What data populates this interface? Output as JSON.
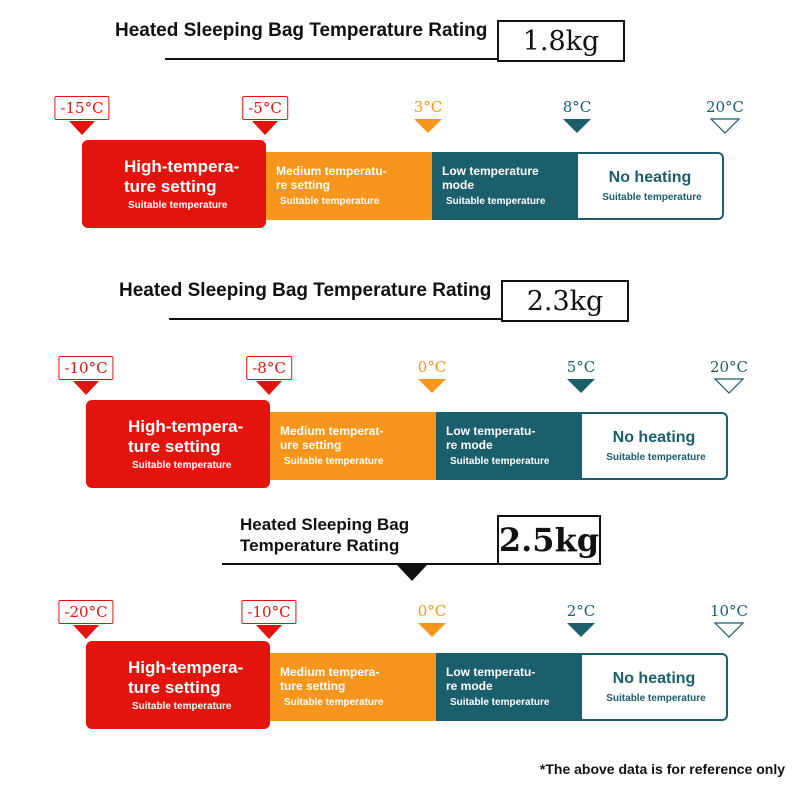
{
  "sections": [
    {
      "title": [
        "Heated Sleeping Bag Temperature Rating"
      ],
      "weight": "1.8kg",
      "markers": [
        "-15°C",
        "-5°C",
        "3°C",
        "8°C",
        "20°C"
      ],
      "segments": [
        {
          "title": [
            "High-tempera-",
            "ture setting"
          ],
          "subtitle": "Suitable temperature"
        },
        {
          "title": [
            "Medium temperatu-",
            "re setting"
          ],
          "subtitle": "Suitable temperature"
        },
        {
          "title": [
            "Low temperature",
            "mode"
          ],
          "subtitle": "Suitable temperature"
        },
        {
          "title": [
            "No heating"
          ],
          "subtitle": "Suitable temperature"
        }
      ]
    },
    {
      "title": [
        "Heated Sleeping Bag Temperature Rating"
      ],
      "weight": "2.3kg",
      "markers": [
        "-10°C",
        "-8°C",
        "0°C",
        "5°C",
        "20°C"
      ],
      "segments": [
        {
          "title": [
            "High-tempera-",
            "ture setting"
          ],
          "subtitle": "Suitable temperature"
        },
        {
          "title": [
            "Medium temperat-",
            "ure setting"
          ],
          "subtitle": "Suitable temperature"
        },
        {
          "title": [
            "Low temperatu-",
            "re mode"
          ],
          "subtitle": "Suitable temperature"
        },
        {
          "title": [
            "No heating"
          ],
          "subtitle": "Suitable temperature"
        }
      ]
    },
    {
      "title": [
        "Heated Sleeping Bag",
        "Temperature Rating"
      ],
      "weight": "2.5kg",
      "markers": [
        "-20°C",
        "-10°C",
        "0°C",
        "2°C",
        "10°C"
      ],
      "segments": [
        {
          "title": [
            "High-tempera-",
            "ture setting"
          ],
          "subtitle": "Suitable temperature"
        },
        {
          "title": [
            "Medium tempera-",
            "ture setting"
          ],
          "subtitle": "Suitable temperature"
        },
        {
          "title": [
            "Low temperatu-",
            "re mode"
          ],
          "subtitle": "Suitable temperature"
        },
        {
          "title": [
            "No heating"
          ],
          "subtitle": "Suitable temperature"
        }
      ]
    }
  ],
  "footnote": "*The above data is for reference only"
}
